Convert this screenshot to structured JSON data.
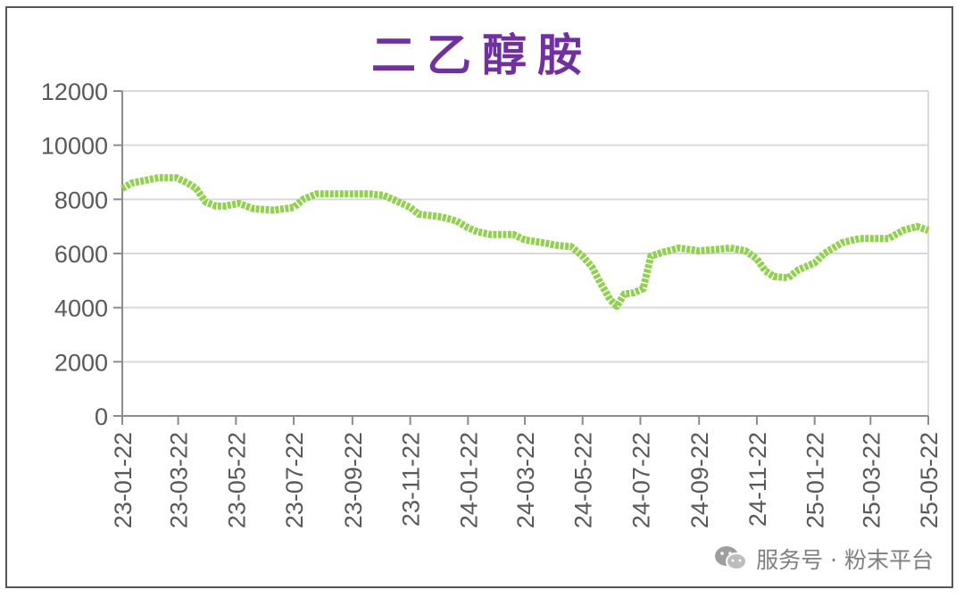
{
  "chart_data": {
    "type": "line",
    "title": "二乙醇胺",
    "xlabel": "",
    "ylabel": "",
    "ylim": [
      0,
      12000
    ],
    "yticks": [
      0,
      2000,
      4000,
      6000,
      8000,
      10000,
      12000
    ],
    "xticks": [
      "23-01-22",
      "23-03-22",
      "23-05-22",
      "23-07-22",
      "23-09-22",
      "23-11-22",
      "24-01-22",
      "24-03-22",
      "24-05-22",
      "24-07-22",
      "24-09-22",
      "24-11-22",
      "25-01-22",
      "25-03-22",
      "25-05-22"
    ],
    "grid": true,
    "legend": "none",
    "series": [
      {
        "color": "#92d050",
        "points": [
          [
            "2023-01-22",
            8400
          ],
          [
            "2023-02-01",
            8600
          ],
          [
            "2023-02-15",
            8700
          ],
          [
            "2023-03-01",
            8800
          ],
          [
            "2023-03-20",
            8800
          ],
          [
            "2023-04-01",
            8600
          ],
          [
            "2023-04-10",
            8400
          ],
          [
            "2023-04-20",
            7900
          ],
          [
            "2023-05-01",
            7750
          ],
          [
            "2023-05-10",
            7750
          ],
          [
            "2023-05-25",
            7850
          ],
          [
            "2023-06-10",
            7650
          ],
          [
            "2023-07-01",
            7600
          ],
          [
            "2023-07-22",
            7700
          ],
          [
            "2023-08-01",
            8000
          ],
          [
            "2023-08-15",
            8200
          ],
          [
            "2023-09-01",
            8200
          ],
          [
            "2023-09-22",
            8200
          ],
          [
            "2023-10-10",
            8200
          ],
          [
            "2023-10-25",
            8150
          ],
          [
            "2023-11-10",
            7900
          ],
          [
            "2023-11-22",
            7700
          ],
          [
            "2023-12-01",
            7450
          ],
          [
            "2023-12-25",
            7350
          ],
          [
            "2024-01-10",
            7200
          ],
          [
            "2024-01-22",
            6950
          ],
          [
            "2024-02-01",
            6800
          ],
          [
            "2024-02-15",
            6700
          ],
          [
            "2024-03-10",
            6700
          ],
          [
            "2024-03-22",
            6500
          ],
          [
            "2024-04-10",
            6400
          ],
          [
            "2024-04-25",
            6300
          ],
          [
            "2024-05-10",
            6250
          ],
          [
            "2024-05-22",
            5900
          ],
          [
            "2024-06-01",
            5500
          ],
          [
            "2024-06-10",
            4900
          ],
          [
            "2024-06-20",
            4300
          ],
          [
            "2024-06-27",
            4050
          ],
          [
            "2024-07-05",
            4500
          ],
          [
            "2024-07-15",
            4550
          ],
          [
            "2024-07-25",
            4700
          ],
          [
            "2024-08-02",
            5900
          ],
          [
            "2024-08-15",
            6050
          ],
          [
            "2024-09-01",
            6200
          ],
          [
            "2024-09-22",
            6100
          ],
          [
            "2024-10-10",
            6150
          ],
          [
            "2024-10-25",
            6200
          ],
          [
            "2024-11-10",
            6100
          ],
          [
            "2024-11-22",
            5800
          ],
          [
            "2024-12-01",
            5350
          ],
          [
            "2024-12-10",
            5150
          ],
          [
            "2024-12-25",
            5100
          ],
          [
            "2025-01-05",
            5400
          ],
          [
            "2025-01-22",
            5650
          ],
          [
            "2025-02-01",
            6000
          ],
          [
            "2025-02-20",
            6400
          ],
          [
            "2025-03-10",
            6550
          ],
          [
            "2025-03-22",
            6550
          ],
          [
            "2025-04-10",
            6550
          ],
          [
            "2025-04-25",
            6850
          ],
          [
            "2025-05-10",
            7000
          ],
          [
            "2025-05-22",
            6850
          ]
        ]
      }
    ]
  },
  "title_color": "#7030a0",
  "watermark": {
    "text": "服务号 · 粉末平台",
    "icon": "wechat-icon"
  }
}
